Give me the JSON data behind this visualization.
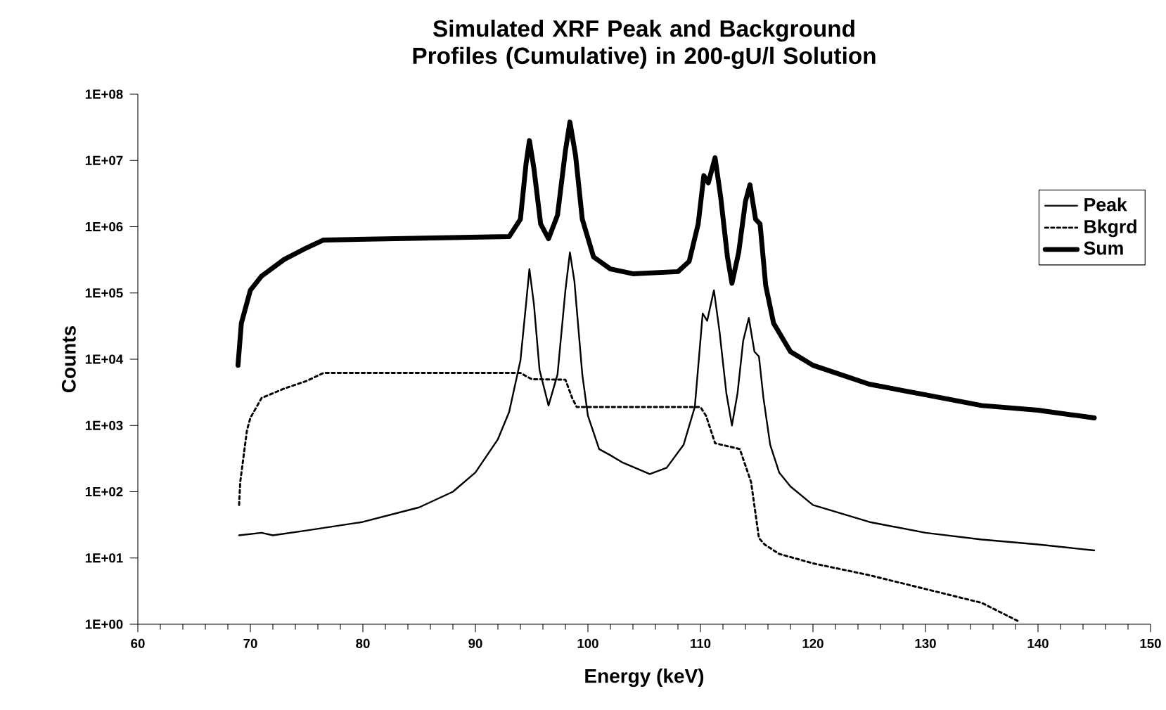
{
  "chart_data": {
    "type": "line",
    "title": "Simulated XRF Peak and Background Profiles (Cumulative) in 200-gU/l Solution",
    "xlabel": "Energy (keV)",
    "ylabel": "Counts",
    "log": "y",
    "grid": false,
    "legend": "top right",
    "marker": "none",
    "xlim": [
      60,
      150
    ],
    "xticks": [
      60,
      70,
      80,
      90,
      100,
      110,
      120,
      130,
      140,
      150
    ],
    "ylim": [
      1,
      100000000
    ],
    "yticks": [
      {
        "value": 1,
        "label": "1E+00"
      },
      {
        "value": 10,
        "label": "1E+01"
      },
      {
        "value": 100,
        "label": "1E+02"
      },
      {
        "value": 1000,
        "label": "1E+03"
      },
      {
        "value": 10000,
        "label": "1E+04"
      },
      {
        "value": 100000,
        "label": "1E+05"
      },
      {
        "value": 1000000,
        "label": "1E+06"
      },
      {
        "value": 10000000,
        "label": "1E+07"
      },
      {
        "value": 100000000,
        "label": "1E+08"
      }
    ],
    "series": [
      {
        "name": "Peak",
        "color": "#000000",
        "line_style": "solid",
        "x": [
          69,
          71,
          72,
          75,
          80,
          85,
          88,
          90,
          92,
          93,
          94,
          94.5,
          94.8,
          95.2,
          95.7,
          96.5,
          97.3,
          98,
          98.4,
          98.8,
          99.5,
          100,
          101,
          102,
          103,
          105.5,
          107,
          108.5,
          109.5,
          110.2,
          110.6,
          111.2,
          111.7,
          112.3,
          112.8,
          113.3,
          113.8,
          114.3,
          114.8,
          115.2,
          115.6,
          116.2,
          117,
          118,
          120,
          125,
          130,
          135,
          140,
          145
        ],
        "values": [
          22,
          24,
          22,
          26,
          35,
          58,
          100,
          195,
          620,
          1600,
          9500,
          68000,
          230000,
          68000,
          6900,
          2000,
          5900,
          110000,
          410000,
          150000,
          5900,
          1400,
          440,
          355,
          280,
          185,
          230,
          510,
          1900,
          49000,
          38000,
          110000,
          26000,
          3100,
          1000,
          3100,
          19000,
          42000,
          13000,
          11000,
          2600,
          510,
          195,
          120,
          63,
          35,
          24,
          19,
          16,
          13
        ]
      },
      {
        "name": "Bkgrd",
        "color": "#000000",
        "line_style": "dotted",
        "x": [
          69,
          69.1,
          69.7,
          70,
          71,
          73,
          75,
          76.5,
          94,
          95,
          98,
          98.6,
          99,
          110,
          110.5,
          111.3,
          113.5,
          114.5,
          115.2,
          115.7,
          117,
          120,
          125,
          130,
          135,
          138.3
        ],
        "values": [
          63,
          140,
          850,
          1300,
          2600,
          3600,
          4700,
          6200,
          6200,
          5000,
          4900,
          2600,
          1900,
          1900,
          1400,
          540,
          440,
          140,
          20,
          16,
          11.5,
          8.3,
          5.5,
          3.4,
          2.1,
          1.1
        ]
      },
      {
        "name": "Sum",
        "color": "#000000",
        "line_style": "solid",
        "x": [
          68.9,
          69.2,
          70,
          71,
          73,
          75,
          76.5,
          93,
          94,
          94.5,
          94.8,
          95.2,
          95.8,
          96.5,
          97.3,
          98,
          98.4,
          98.9,
          99.5,
          100.5,
          102,
          104,
          108,
          109,
          109.8,
          110.3,
          110.7,
          111.3,
          111.8,
          112.4,
          112.8,
          113.4,
          114,
          114.4,
          114.9,
          115.3,
          115.8,
          116.5,
          118,
          120,
          125,
          130,
          135,
          140,
          145
        ],
        "values": [
          8100,
          35000,
          110000,
          180000,
          320000,
          480000,
          630000,
          710000,
          1300000,
          8900000,
          20000000,
          7600000,
          1100000,
          660000,
          1500000,
          14000000,
          38000000,
          12000000,
          1300000,
          350000,
          230000,
          195000,
          210000,
          300000,
          1100000,
          5900000,
          4600000,
          11000000,
          2800000,
          350000,
          140000,
          410000,
          2400000,
          4300000,
          1300000,
          1100000,
          130000,
          35000,
          13000,
          8100,
          4200,
          2900,
          2000,
          1700,
          1300
        ]
      }
    ]
  }
}
